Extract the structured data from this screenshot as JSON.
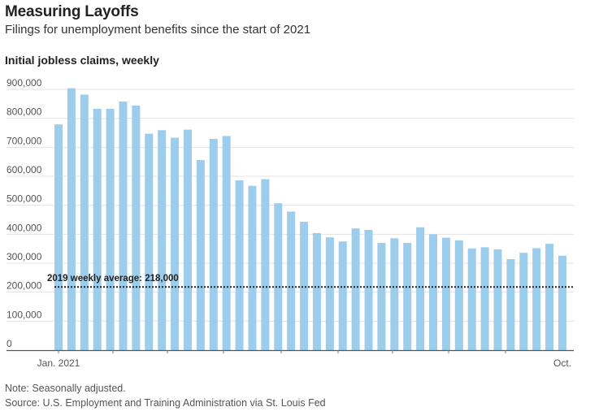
{
  "header": {
    "title": "Measuring Layoffs",
    "subtitle": "Filings for unemployment benefits since the start of 2021"
  },
  "footer": {
    "note": "Note: Seasonally adjusted.",
    "source": "Source: U.S. Employment and Training Administration via St. Louis Fed"
  },
  "chart_data": {
    "type": "bar",
    "title": "Initial jobless claims, weekly",
    "xlabel": "",
    "ylabel": "",
    "ylim": [
      0,
      900000
    ],
    "yticks": [
      900000,
      800000,
      700000,
      600000,
      500000,
      400000,
      300000,
      200000,
      100000,
      0
    ],
    "ytick_labels": [
      "900,000",
      "800,000",
      "700,000",
      "600,000",
      "500,000",
      "400,000",
      "300,000",
      "200,000",
      "100,000",
      "0"
    ],
    "xtick_labels": [
      {
        "label": "Jan. 2021",
        "index": 0
      },
      {
        "label": "Oct.",
        "index": 39
      }
    ],
    "grid": true,
    "bar_color": "#9dcdec",
    "series": [
      {
        "values": [
          779000,
          904000,
          882000,
          833000,
          833000,
          858000,
          844000,
          747000,
          759000,
          733000,
          761000,
          656000,
          729000,
          739000,
          586000,
          567000,
          590000,
          507000,
          478000,
          443000,
          404000,
          389000,
          375000,
          420000,
          415000,
          370000,
          386000,
          370000,
          424000,
          400000,
          388000,
          379000,
          351000,
          355000,
          348000,
          314000,
          336000,
          352000,
          367000,
          326000
        ]
      }
    ],
    "reference_line": {
      "label": "2019 weekly average: 218,000",
      "value": 218000
    }
  }
}
